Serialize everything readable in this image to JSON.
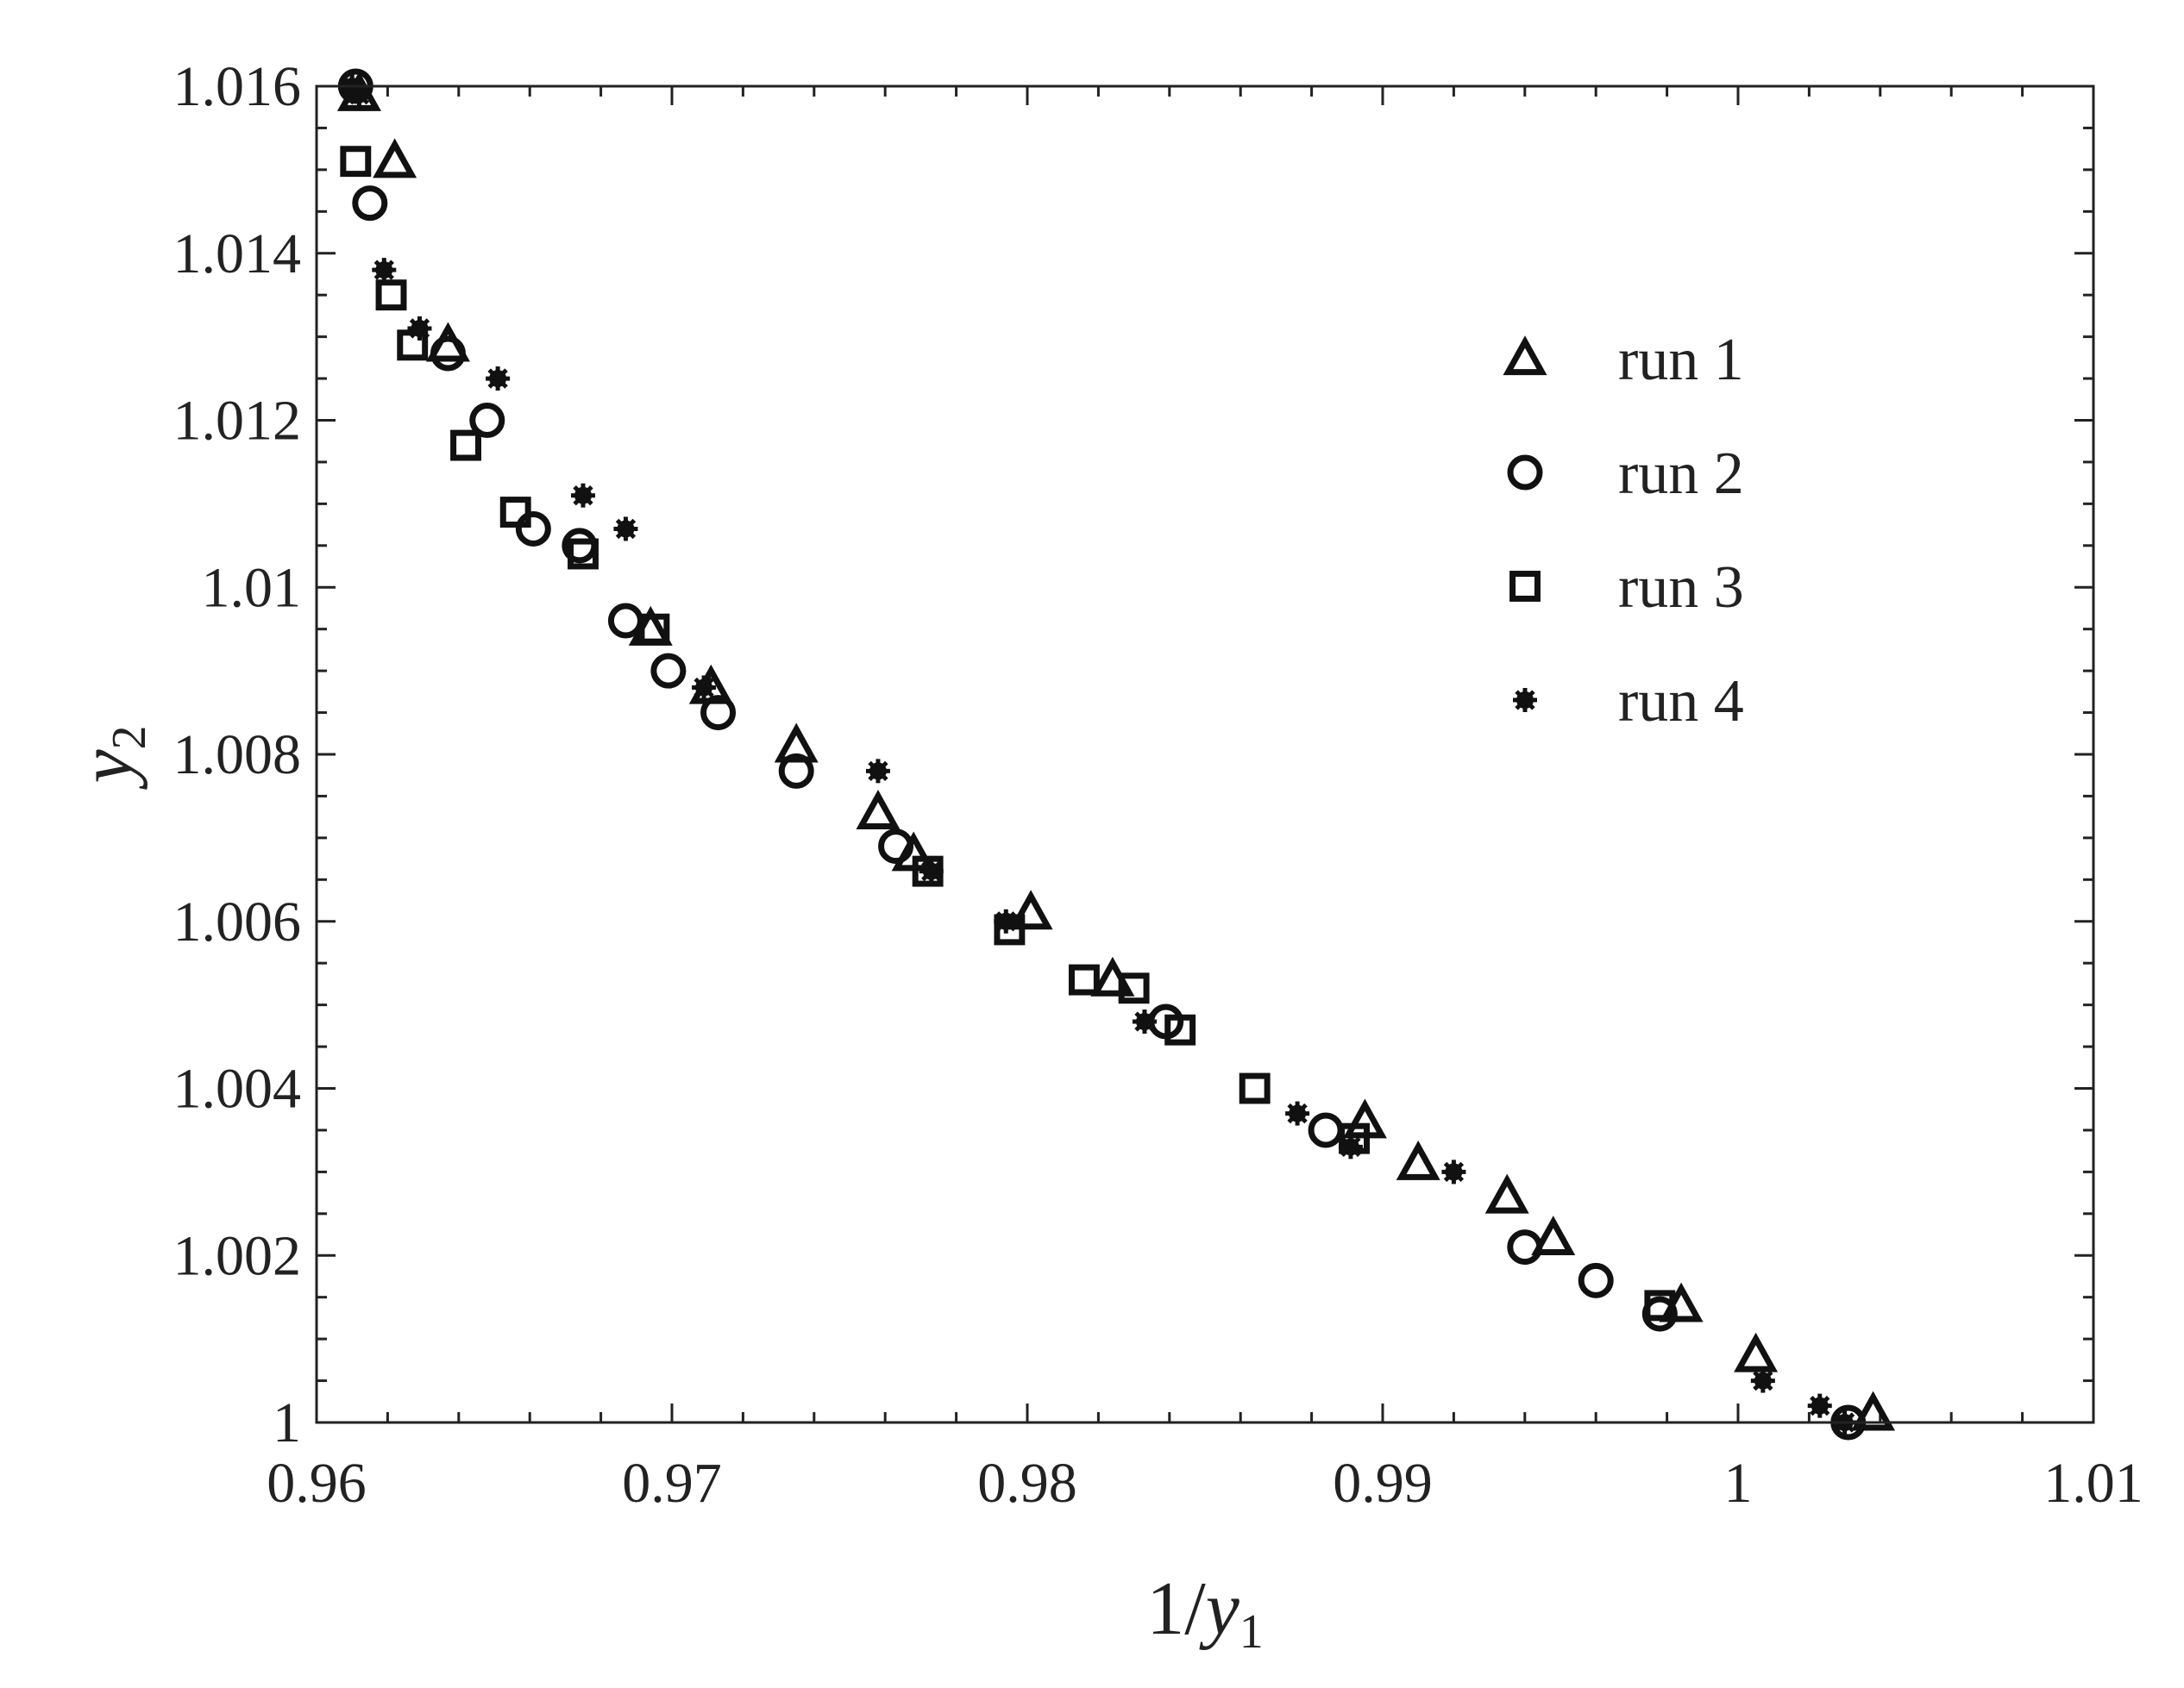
{
  "chart_data": {
    "type": "scatter",
    "title": "",
    "xlabel": "1/y1",
    "ylabel": "y2",
    "xlim": [
      0.96,
      1.01
    ],
    "ylim": [
      1.0,
      1.016
    ],
    "grid": false,
    "legend_position": "top-right",
    "x_tick_labels": [
      "0.96",
      "0.97",
      "0.98",
      "0.99",
      "1",
      "1.01"
    ],
    "y_tick_labels": [
      "1",
      "1.002",
      "1.004",
      "1.006",
      "1.008",
      "1.01",
      "1.012",
      "1.014",
      "1.016"
    ],
    "series": [
      {
        "name": "run 1",
        "marker": "triangle",
        "points": [
          [
            0.9612,
            1.0159
          ],
          [
            0.9622,
            1.0151
          ],
          [
            0.9637,
            1.0129
          ],
          [
            0.9694,
            1.0095
          ],
          [
            0.9711,
            1.0088
          ],
          [
            0.9735,
            1.0081
          ],
          [
            0.9758,
            1.0073
          ],
          [
            0.9768,
            1.0068
          ],
          [
            0.9801,
            1.0061
          ],
          [
            0.9824,
            1.0053
          ],
          [
            0.9895,
            1.0036
          ],
          [
            0.991,
            1.0031
          ],
          [
            0.9935,
            1.0027
          ],
          [
            0.9948,
            1.0022
          ],
          [
            0.9984,
            1.0014
          ],
          [
            1.0005,
            1.0008
          ],
          [
            1.0038,
            1.0001
          ]
        ]
      },
      {
        "name": "run 2",
        "marker": "circle",
        "points": [
          [
            0.9611,
            1.016
          ],
          [
            0.9615,
            1.0146
          ],
          [
            0.9637,
            1.0128
          ],
          [
            0.9648,
            1.012
          ],
          [
            0.9661,
            1.0107
          ],
          [
            0.9674,
            1.0105
          ],
          [
            0.9687,
            1.0096
          ],
          [
            0.9699,
            1.009
          ],
          [
            0.9713,
            1.0085
          ],
          [
            0.9735,
            1.0078
          ],
          [
            0.9763,
            1.0069
          ],
          [
            0.9839,
            1.0048
          ],
          [
            0.9884,
            1.0035
          ],
          [
            0.994,
            1.0021
          ],
          [
            0.996,
            1.0017
          ],
          [
            0.9978,
            1.0013
          ],
          [
            1.0031,
            1.0
          ]
        ]
      },
      {
        "name": "run 3",
        "marker": "square",
        "points": [
          [
            0.9611,
            1.0151
          ],
          [
            0.9621,
            1.0135
          ],
          [
            0.9627,
            1.0129
          ],
          [
            0.9642,
            1.0117
          ],
          [
            0.9656,
            1.0109
          ],
          [
            0.9675,
            1.0104
          ],
          [
            0.9695,
            1.0095
          ],
          [
            0.9772,
            1.0066
          ],
          [
            0.9795,
            1.0059
          ],
          [
            0.9816,
            1.0053
          ],
          [
            0.983,
            1.0052
          ],
          [
            0.9843,
            1.0047
          ],
          [
            0.9864,
            1.004
          ],
          [
            0.9892,
            1.0034
          ],
          [
            0.9978,
            1.0014
          ]
        ]
      },
      {
        "name": "run 4",
        "marker": "asterisk",
        "points": [
          [
            0.961,
            1.016
          ],
          [
            0.9612,
            1.0159
          ],
          [
            0.9619,
            1.0138
          ],
          [
            0.9629,
            1.0131
          ],
          [
            0.9651,
            1.0125
          ],
          [
            0.9675,
            1.0111
          ],
          [
            0.9687,
            1.0107
          ],
          [
            0.9709,
            1.0088
          ],
          [
            0.9758,
            1.0078
          ],
          [
            0.9773,
            1.0066
          ],
          [
            0.9794,
            1.006
          ],
          [
            0.9833,
            1.0048
          ],
          [
            0.9876,
            1.0037
          ],
          [
            0.9891,
            1.0033
          ],
          [
            0.992,
            1.003
          ],
          [
            1.0007,
            1.0005
          ],
          [
            1.0023,
            1.0002
          ],
          [
            1.003,
            1.0
          ]
        ]
      }
    ]
  }
}
